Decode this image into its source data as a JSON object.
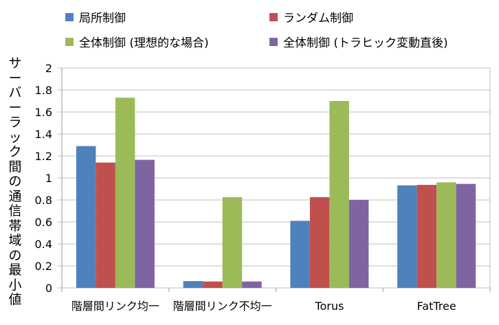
{
  "chart_data": {
    "type": "bar",
    "title": "",
    "xlabel": "",
    "ylabel": "サーバーラック間の通信帯域の最小値",
    "ylim": [
      0,
      2
    ],
    "yticks": [
      "0",
      "0.2",
      "0.4",
      "0.6",
      "0.8",
      "1",
      "1.2",
      "1.4",
      "1.6",
      "1.8",
      "2"
    ],
    "grid": true,
    "legend_position": "top",
    "categories": [
      "階層間リンク均一",
      "階層間リンク不均一",
      "Torus",
      "FatTree"
    ],
    "series": [
      {
        "name": "局所制御",
        "color": "#4f81bd",
        "values": [
          1.29,
          0.062,
          0.61,
          0.933
        ]
      },
      {
        "name": "ランダム制御",
        "color": "#c0504d",
        "values": [
          1.14,
          0.058,
          0.825,
          0.937
        ]
      },
      {
        "name": "全体制御 (理想的な場合)",
        "color": "#9bbb59",
        "values": [
          1.73,
          0.825,
          1.7,
          0.96
        ]
      },
      {
        "name": "全体制御 (トラヒック変動直後)",
        "color": "#8064a2",
        "values": [
          1.165,
          0.058,
          0.8,
          0.946
        ]
      }
    ]
  }
}
